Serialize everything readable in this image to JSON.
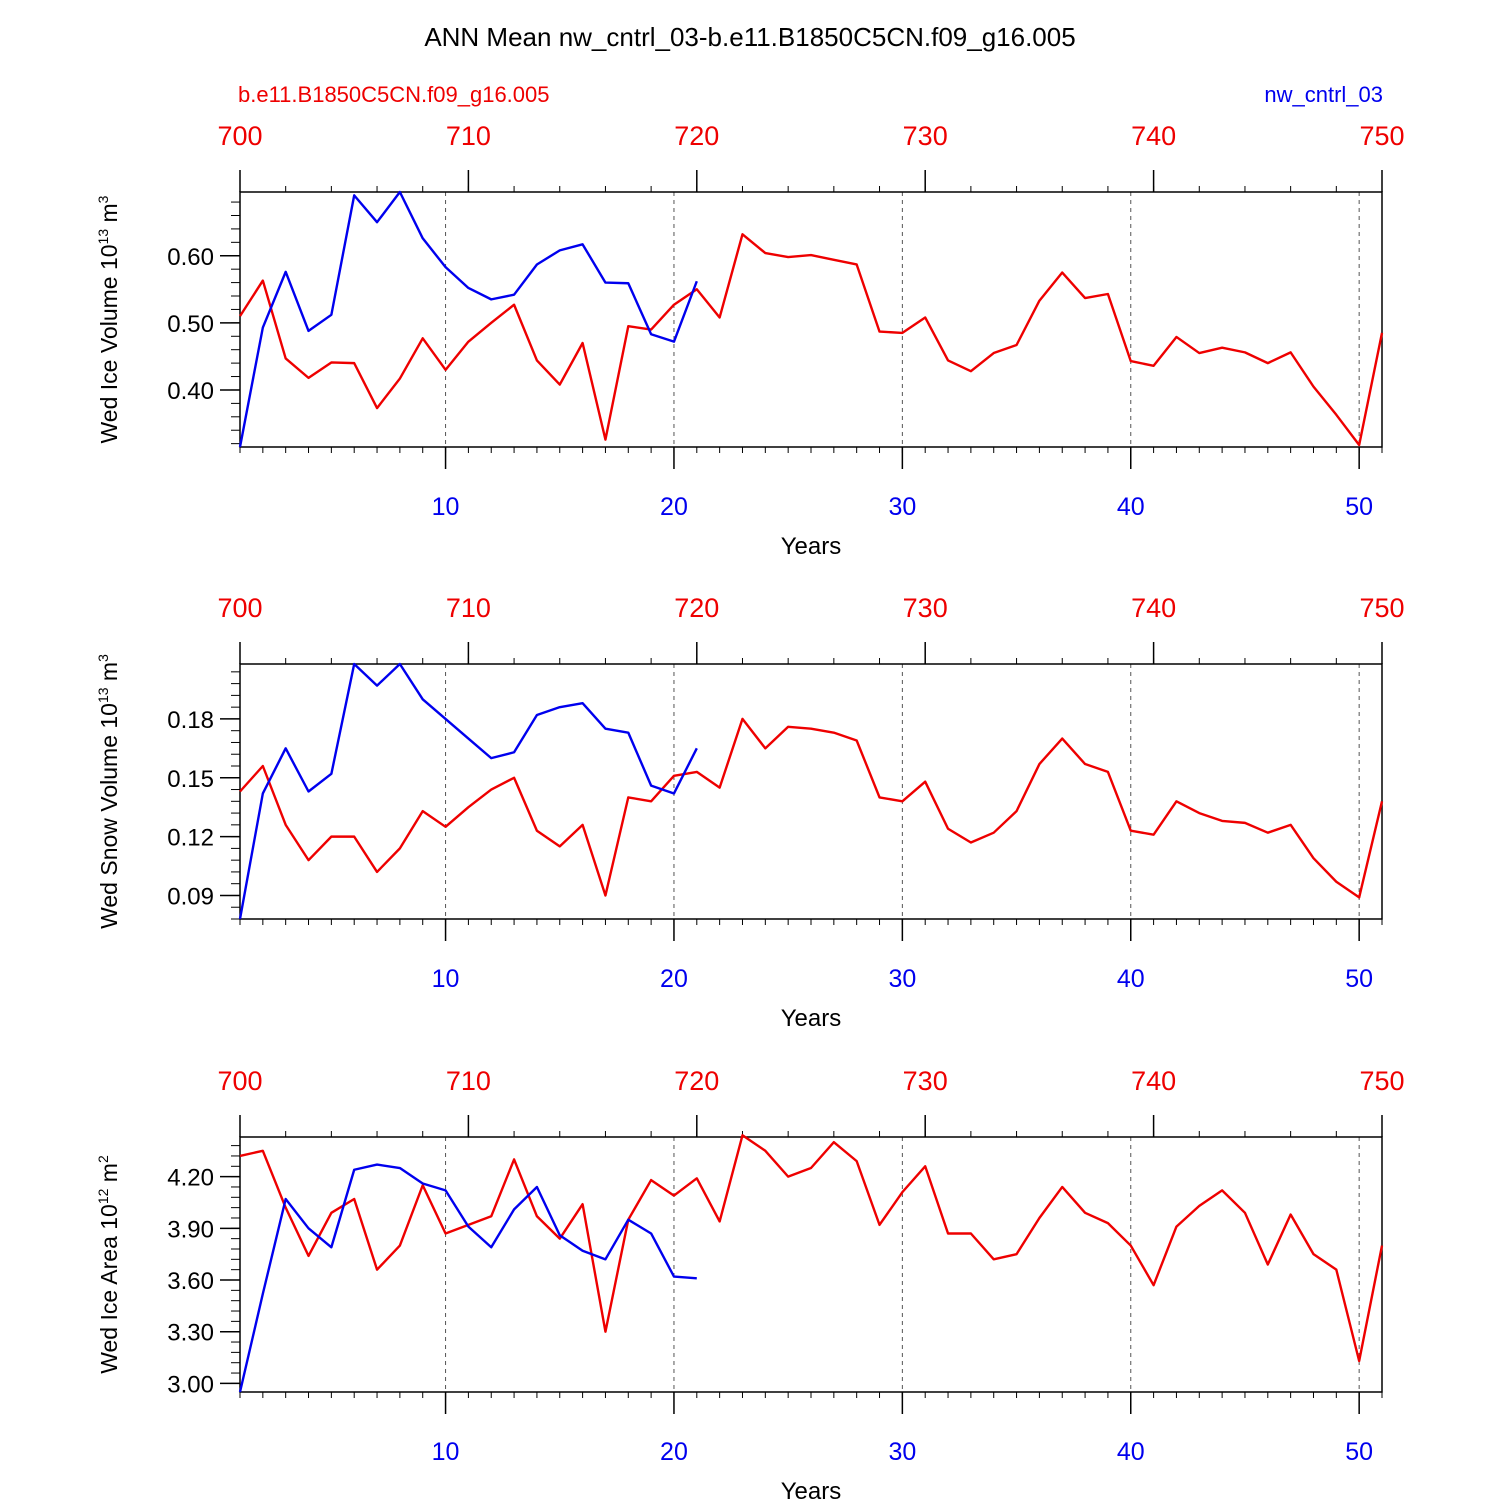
{
  "figure": {
    "title": "ANN Mean nw_cntrl_03-b.e11.B1850C5CN.f09_g16.005",
    "left_label": "b.e11.B1850C5CN.f09_g16.005",
    "right_label": "nw_cntrl_03",
    "colors": {
      "case1": "#ee0000",
      "case2": "#0000ee",
      "axis": "#000000",
      "grid": "#555555"
    }
  },
  "chart_data": [
    {
      "type": "line",
      "ylabel": "Wed Ice Volume 10",
      "ylabel_exp": "13",
      "ylabel_unit": " m",
      "ylabel_unit_exp": "3",
      "xlabel": "Years",
      "x_bottom_range": [
        1,
        51
      ],
      "x_top_range": [
        700,
        750
      ],
      "x_top_ticks": [
        "700",
        "710",
        "720",
        "730",
        "740",
        "750"
      ],
      "x_bottom_ticks": [
        "10",
        "20",
        "30",
        "40",
        "50"
      ],
      "ylim": [
        0.315,
        0.695
      ],
      "y_ticks": [
        0.4,
        0.5,
        0.6
      ],
      "y_tick_labels": [
        "0.40",
        "0.50",
        "0.60"
      ],
      "grid": "vertical dashed at 10-year intervals",
      "series": [
        {
          "name": "b.e11.B1850C5CN.f09_g16.005",
          "color": "#ee0000",
          "values": [
            0.51,
            0.563,
            0.447,
            0.418,
            0.441,
            0.44,
            0.373,
            0.417,
            0.477,
            0.43,
            0.472,
            0.5,
            0.527,
            0.444,
            0.408,
            0.47,
            0.326,
            0.495,
            0.49,
            0.527,
            0.55,
            0.508,
            0.632,
            0.604,
            0.598,
            0.601,
            0.594,
            0.587,
            0.487,
            0.485,
            0.508,
            0.444,
            0.428,
            0.455,
            0.467,
            0.533,
            0.575,
            0.537,
            0.543,
            0.443,
            0.436,
            0.479,
            0.455,
            0.463,
            0.456,
            0.44,
            0.456,
            0.405,
            0.363,
            0.318,
            0.485
          ]
        },
        {
          "name": "nw_cntrl_03",
          "color": "#0000ee",
          "values": [
            0.315,
            0.493,
            0.576,
            0.488,
            0.512,
            0.69,
            0.65,
            0.695,
            0.626,
            0.583,
            0.552,
            0.535,
            0.542,
            0.587,
            0.608,
            0.617,
            0.56,
            0.559,
            0.483,
            0.472,
            0.562
          ]
        }
      ]
    },
    {
      "type": "line",
      "ylabel": "Wed Snow Volume 10",
      "ylabel_exp": "13",
      "ylabel_unit": " m",
      "ylabel_unit_exp": "3",
      "xlabel": "Years",
      "x_bottom_range": [
        1,
        51
      ],
      "x_top_range": [
        700,
        750
      ],
      "x_top_ticks": [
        "700",
        "710",
        "720",
        "730",
        "740",
        "750"
      ],
      "x_bottom_ticks": [
        "10",
        "20",
        "30",
        "40",
        "50"
      ],
      "ylim": [
        0.078,
        0.208
      ],
      "y_ticks": [
        0.09,
        0.12,
        0.15,
        0.18
      ],
      "y_tick_labels": [
        "0.09",
        "0.12",
        "0.15",
        "0.18"
      ],
      "grid": "vertical dashed at 10-year intervals",
      "series": [
        {
          "name": "b.e11.B1850C5CN.f09_g16.005",
          "color": "#ee0000",
          "values": [
            0.143,
            0.156,
            0.126,
            0.108,
            0.12,
            0.12,
            0.102,
            0.114,
            0.133,
            0.125,
            0.135,
            0.144,
            0.15,
            0.123,
            0.115,
            0.126,
            0.09,
            0.14,
            0.138,
            0.151,
            0.153,
            0.145,
            0.18,
            0.165,
            0.176,
            0.175,
            0.173,
            0.169,
            0.14,
            0.138,
            0.148,
            0.124,
            0.117,
            0.122,
            0.133,
            0.157,
            0.17,
            0.157,
            0.153,
            0.123,
            0.121,
            0.138,
            0.132,
            0.128,
            0.127,
            0.122,
            0.126,
            0.109,
            0.097,
            0.089,
            0.138
          ]
        },
        {
          "name": "nw_cntrl_03",
          "color": "#0000ee",
          "values": [
            0.078,
            0.142,
            0.165,
            0.143,
            0.152,
            0.208,
            0.197,
            0.208,
            0.19,
            0.18,
            0.17,
            0.16,
            0.163,
            0.182,
            0.186,
            0.188,
            0.175,
            0.173,
            0.146,
            0.142,
            0.165
          ]
        }
      ]
    },
    {
      "type": "line",
      "ylabel": "Wed Ice Area 10",
      "ylabel_exp": "12",
      "ylabel_unit": " m",
      "ylabel_unit_exp": "2",
      "xlabel": "Years",
      "x_bottom_range": [
        1,
        51
      ],
      "x_top_range": [
        700,
        750
      ],
      "x_top_ticks": [
        "700",
        "710",
        "720",
        "730",
        "740",
        "750"
      ],
      "x_bottom_ticks": [
        "10",
        "20",
        "30",
        "40",
        "50"
      ],
      "ylim": [
        2.95,
        4.43
      ],
      "y_ticks": [
        3.0,
        3.3,
        3.6,
        3.9,
        4.2
      ],
      "y_tick_labels": [
        "3.00",
        "3.30",
        "3.60",
        "3.90",
        "4.20"
      ],
      "grid": "vertical dashed at 10-year intervals",
      "series": [
        {
          "name": "b.e11.B1850C5CN.f09_g16.005",
          "color": "#ee0000",
          "values": [
            4.32,
            4.35,
            4.02,
            3.74,
            3.99,
            4.07,
            3.66,
            3.8,
            4.15,
            3.87,
            3.92,
            3.97,
            4.3,
            3.97,
            3.84,
            4.04,
            3.3,
            3.95,
            4.18,
            4.09,
            4.19,
            3.94,
            4.44,
            4.35,
            4.2,
            4.25,
            4.4,
            4.29,
            3.92,
            4.11,
            4.26,
            3.87,
            3.87,
            3.72,
            3.75,
            3.96,
            4.14,
            3.99,
            3.93,
            3.8,
            3.57,
            3.91,
            4.03,
            4.12,
            3.99,
            3.69,
            3.98,
            3.75,
            3.66,
            3.13,
            3.8
          ]
        },
        {
          "name": "nw_cntrl_03",
          "color": "#0000ee",
          "values": [
            2.95,
            3.52,
            4.07,
            3.9,
            3.79,
            4.24,
            4.27,
            4.25,
            4.16,
            4.12,
            3.91,
            3.79,
            4.01,
            4.14,
            3.86,
            3.77,
            3.72,
            3.95,
            3.87,
            3.62,
            3.61
          ]
        }
      ]
    }
  ]
}
